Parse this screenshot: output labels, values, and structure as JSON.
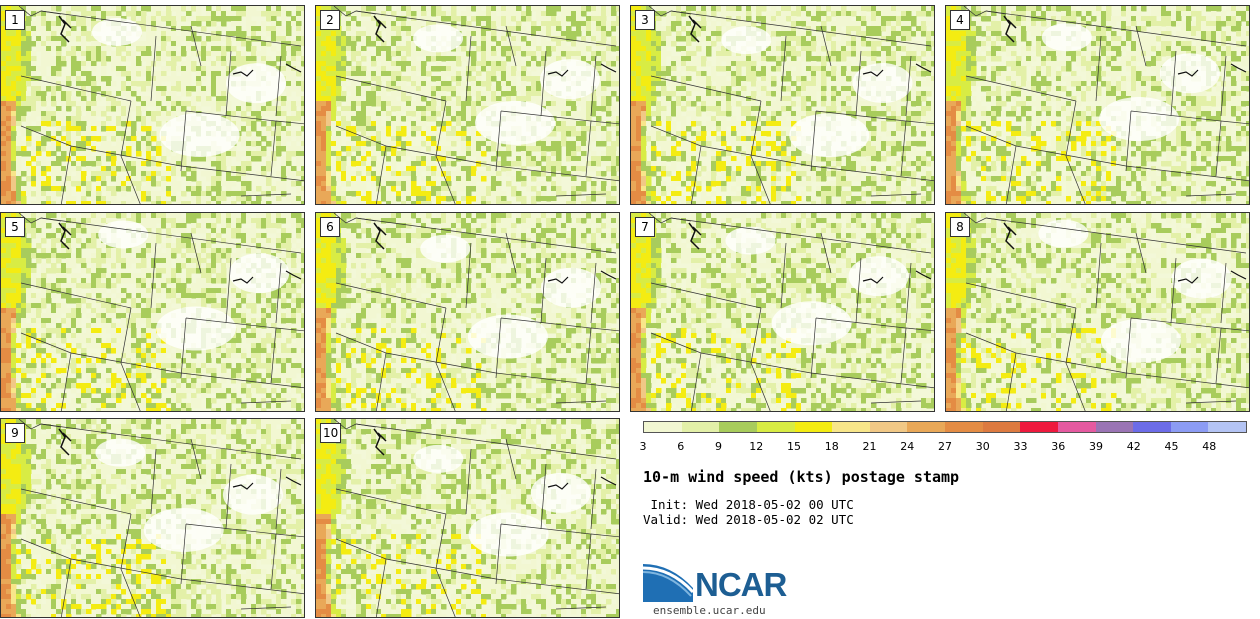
{
  "chart_data": {
    "type": "heatmap",
    "title": "10-m wind speed (kts) postage stamp",
    "init_text": " Init: Wed 2018-05-02 00 UTC",
    "valid_text": "Valid: Wed 2018-05-02 02 UTC",
    "units": "kts",
    "panels": [
      {
        "member": "1"
      },
      {
        "member": "2"
      },
      {
        "member": "3"
      },
      {
        "member": "4"
      },
      {
        "member": "5"
      },
      {
        "member": "6"
      },
      {
        "member": "7"
      },
      {
        "member": "8"
      },
      {
        "member": "9"
      },
      {
        "member": "10"
      }
    ],
    "colorbar": {
      "tick_labels": [
        "3",
        "6",
        "9",
        "12",
        "15",
        "18",
        "21",
        "24",
        "27",
        "30",
        "33",
        "36",
        "39",
        "42",
        "45",
        "48"
      ],
      "bins": [
        3,
        6,
        9,
        12,
        15,
        18,
        21,
        24,
        27,
        30,
        33,
        36,
        39,
        42,
        45,
        48,
        51
      ],
      "colors": [
        "#f2f7d2",
        "#e3f0a8",
        "#a8cc5c",
        "#d8ec44",
        "#f4ec12",
        "#f8e68a",
        "#f1c886",
        "#e9a858",
        "#e48c44",
        "#dd7a40",
        "#ee1a3e",
        "#e55aa0",
        "#9a74b4",
        "#6c6ce8",
        "#8c9cf4",
        "#b4c4f4"
      ]
    }
  },
  "logo": {
    "text": "NCAR",
    "url": "ensemble.ucar.edu"
  }
}
